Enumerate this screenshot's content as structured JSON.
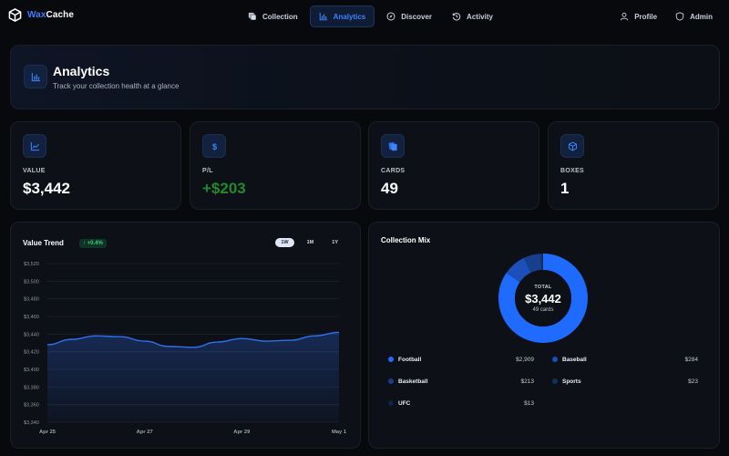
{
  "brand": {
    "name_part1": "Wax",
    "name_part2": "Cache"
  },
  "nav": {
    "items": [
      {
        "label": "Collection",
        "icon": "stack-icon"
      },
      {
        "label": "Analytics",
        "icon": "bar-chart-icon",
        "active": true
      },
      {
        "label": "Discover",
        "icon": "compass-icon"
      },
      {
        "label": "Activity",
        "icon": "history-icon"
      }
    ],
    "right": [
      {
        "label": "Profile",
        "icon": "user-icon"
      },
      {
        "label": "Admin",
        "icon": "shield-icon"
      }
    ]
  },
  "header": {
    "title": "Analytics",
    "subtitle": "Track your collection health at a glance",
    "icon": "bar-chart-icon"
  },
  "stats": [
    {
      "label": "VALUE",
      "value": "$3,442",
      "icon": "line-chart-icon"
    },
    {
      "label": "P/L",
      "value": "+$203",
      "icon": "dollar-icon",
      "positive": true
    },
    {
      "label": "CARDS",
      "value": "49",
      "icon": "cards-icon"
    },
    {
      "label": "BOXES",
      "value": "1",
      "icon": "box-icon"
    }
  ],
  "trend": {
    "title": "Value Trend",
    "badge": "↑ +0.4%",
    "ranges": [
      "1W",
      "1M",
      "1Y"
    ],
    "active_range": "1W"
  },
  "mix": {
    "title": "Collection Mix",
    "center_label": "TOTAL",
    "center_value": "$3,442",
    "center_sub": "49 cards",
    "legend": [
      {
        "name": "Football",
        "value": "$2,909",
        "color": "#1f6bff"
      },
      {
        "name": "Baseball",
        "value": "$284",
        "color": "#1b4fba"
      },
      {
        "name": "Basketball",
        "value": "$213",
        "color": "#173f8f"
      },
      {
        "name": "Sports",
        "value": "$23",
        "color": "#132f66"
      },
      {
        "name": "UFC",
        "value": "$13",
        "color": "#0f2247"
      }
    ]
  },
  "chart_data": [
    {
      "type": "area",
      "title": "Value Trend",
      "x_ticks": [
        "Apr 25",
        "Apr 27",
        "Apr 29",
        "May 1"
      ],
      "y_ticks": [
        "$3,340",
        "$3,360",
        "$3,380",
        "$3,400",
        "$3,420",
        "$3,440",
        "$3,460",
        "$3,480",
        "$3,500",
        "$3,520"
      ],
      "ylim": [
        3340,
        3520
      ],
      "x": [
        0,
        0.5,
        1,
        1.5,
        2,
        2.5,
        3,
        3.5,
        4,
        4.5,
        5,
        5.5,
        6
      ],
      "series": [
        {
          "values": [
            3428,
            3434,
            3438,
            3437,
            3432,
            3426,
            3425,
            3431,
            3435,
            3432,
            3433,
            3438,
            3442
          ]
        }
      ],
      "grid": true,
      "color": "#2f6ff0"
    },
    {
      "type": "pie",
      "title": "Collection Mix",
      "categories": [
        "Football",
        "Baseball",
        "Basketball",
        "Sports",
        "UFC"
      ],
      "values": [
        2909,
        284,
        213,
        23,
        13
      ],
      "colors": [
        "#1f6bff",
        "#1b4fba",
        "#173f8f",
        "#132f66",
        "#0f2247"
      ]
    }
  ]
}
